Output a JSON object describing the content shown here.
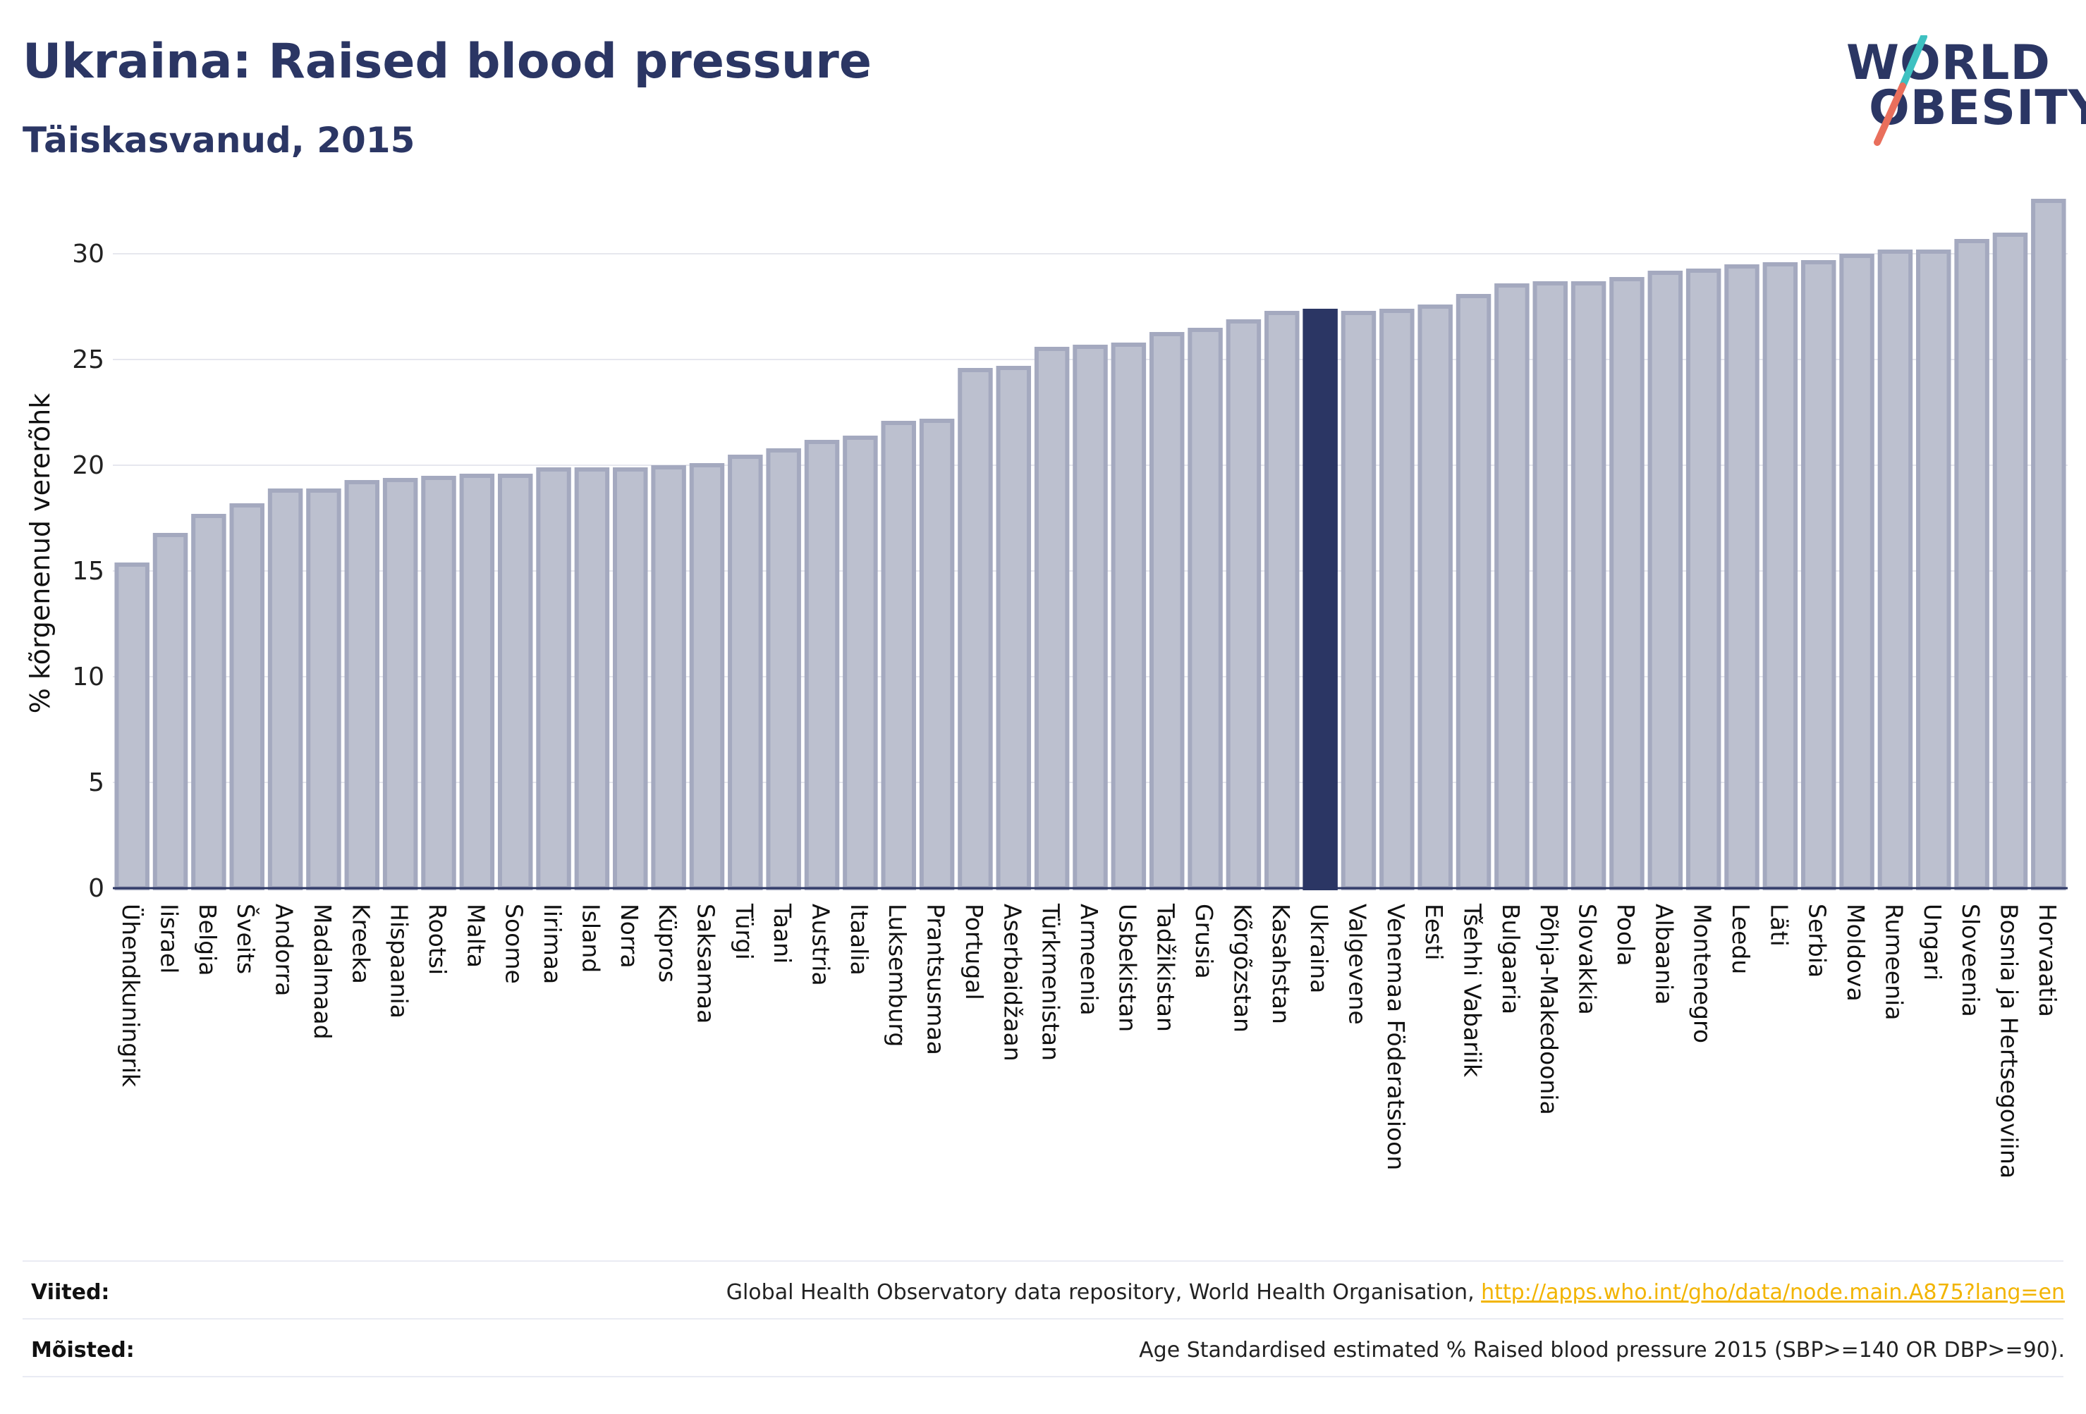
{
  "header": {
    "title": "Ukraina: Raised blood pressure",
    "subtitle": "Täiskasvanud, 2015"
  },
  "logo": {
    "line1": "WORLD",
    "line2": "OBESITY"
  },
  "colors": {
    "bar": "#bcc0cf",
    "bar_stroke": "#a4a9bf",
    "highlight": "#2b3664",
    "text": "#2b3664",
    "link": "#f2b400",
    "logo_slash_top": "#3ec1c1",
    "logo_slash_bottom": "#e96f5c"
  },
  "chart_data": {
    "type": "bar",
    "title": "Ukraina: Raised blood pressure",
    "subtitle": "Täiskasvanud, 2015",
    "ylabel": "% kõrgenenud vererõhk",
    "xlabel": "",
    "ylim": [
      0,
      33
    ],
    "yticks": [
      0,
      5,
      10,
      15,
      20,
      25,
      30
    ],
    "grid": true,
    "highlight": "Ukraina",
    "categories": [
      "Ühendkuningrik",
      "Iisrael",
      "Belgia",
      "Šveits",
      "Andorra",
      "Madalmaad",
      "Kreeka",
      "Hispaania",
      "Rootsi",
      "Malta",
      "Soome",
      "Iirimaa",
      "Island",
      "Norra",
      "Küpros",
      "Saksamaa",
      "Türgi",
      "Taani",
      "Austria",
      "Itaalia",
      "Luksemburg",
      "Prantsusmaa",
      "Portugal",
      "Aserbaidžaan",
      "Türkmenistan",
      "Armeenia",
      "Usbekistan",
      "Tadžikistan",
      "Grusia",
      "Kõrgõzstan",
      "Kasahstan",
      "Ukraina",
      "Valgevene",
      "Venemaa Föderatsioon",
      "Eesti",
      "Tšehhi Vabariik",
      "Bulgaaria",
      "Põhja-Makedoonia",
      "Slovakkia",
      "Poola",
      "Albaania",
      "Montenegro",
      "Leedu",
      "Läti",
      "Serbia",
      "Moldova",
      "Rumeenia",
      "Ungari",
      "Sloveenia",
      "Bosnia ja Hertsegoviina",
      "Horvaatia"
    ],
    "values": [
      15.3,
      16.7,
      17.6,
      18.1,
      18.8,
      18.8,
      19.2,
      19.3,
      19.4,
      19.5,
      19.5,
      19.8,
      19.8,
      19.8,
      19.9,
      20.0,
      20.4,
      20.7,
      21.1,
      21.3,
      22.0,
      22.1,
      24.5,
      24.6,
      25.5,
      25.6,
      25.7,
      26.2,
      26.4,
      26.8,
      27.2,
      27.3,
      27.2,
      27.3,
      27.5,
      28.0,
      28.5,
      28.6,
      28.6,
      28.8,
      29.1,
      29.2,
      29.4,
      29.5,
      29.6,
      29.9,
      30.1,
      30.1,
      30.6,
      30.9,
      32.5
    ]
  },
  "footer": {
    "references_label": "Viited:",
    "references_text": "Global Health Observatory data repository, World Health Organisation, ",
    "references_link": "http://apps.who.int/gho/data/node.main.A875?lang=en",
    "definitions_label": "Mõisted:",
    "definitions_text": "Age Standardised estimated % Raised blood pressure 2015 (SBP>=140 OR DBP>=90)."
  }
}
